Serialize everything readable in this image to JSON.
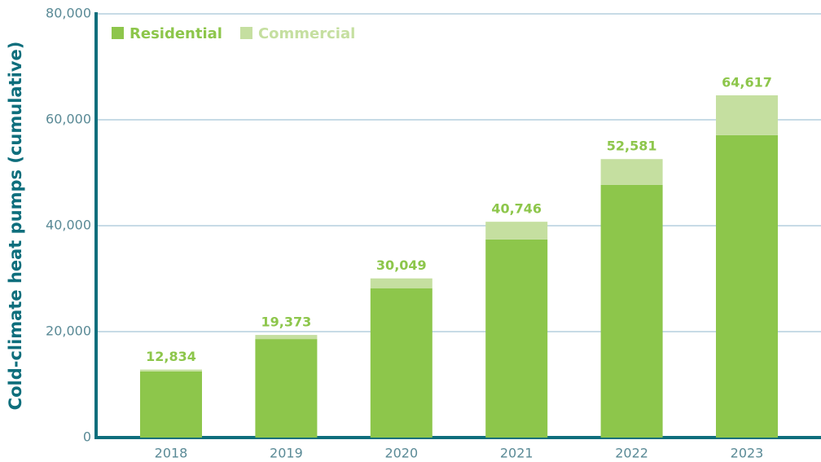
{
  "chart_data": {
    "type": "stacked_bar",
    "y_label": "Cold-climate heat pumps (cumulative)",
    "categories": [
      "2018",
      "2019",
      "2020",
      "2021",
      "2022",
      "2023"
    ],
    "series": [
      {
        "name": "Residential",
        "color": "#8dc64b",
        "values": [
          12500,
          18600,
          28200,
          37400,
          47700,
          57100
        ]
      },
      {
        "name": "Commercial",
        "color": "#c5dfa0",
        "values": [
          334,
          773,
          1849,
          3346,
          4881,
          7517
        ]
      }
    ],
    "total_labels": [
      "12,834",
      "19,373",
      "30,049",
      "40,746",
      "52,581",
      "64,617"
    ],
    "ylim": [
      0,
      80000
    ],
    "yticks": [
      0,
      {
        "value": 20000,
        "label": "20,000"
      },
      {
        "value": 40000,
        "label": "40,000"
      },
      {
        "value": 60000,
        "label": "60,000"
      },
      {
        "value": 80000,
        "label": "80,000"
      }
    ],
    "grid": true,
    "legend": "top-left"
  }
}
